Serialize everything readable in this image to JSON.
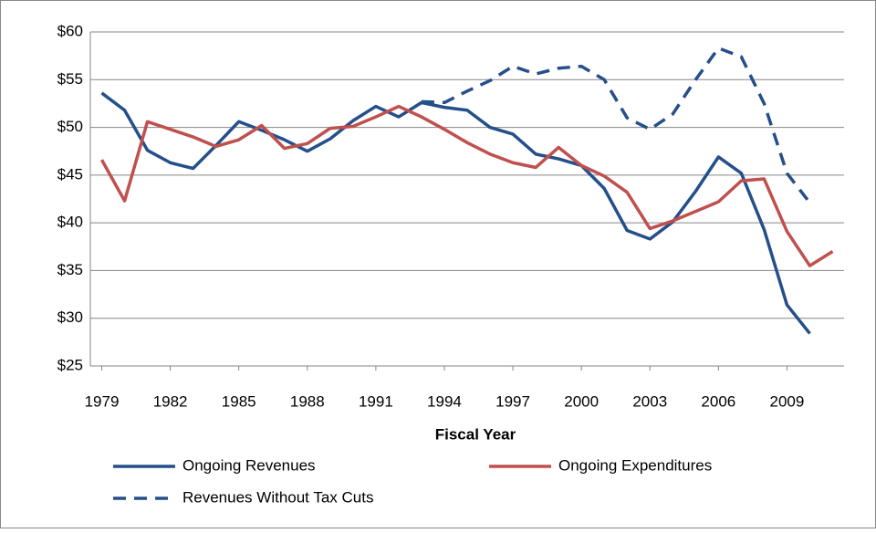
{
  "chart_data": {
    "type": "line",
    "x_label": "Fiscal Year",
    "x": [
      1979,
      1980,
      1981,
      1982,
      1983,
      1984,
      1985,
      1986,
      1987,
      1988,
      1989,
      1990,
      1991,
      1992,
      1993,
      1994,
      1995,
      1996,
      1997,
      1998,
      1999,
      2000,
      2001,
      2002,
      2003,
      2004,
      2005,
      2006,
      2007,
      2008,
      2009,
      2010,
      2011
    ],
    "series": [
      {
        "name": "Ongoing Revenues",
        "color": "#254f8a",
        "dash": false,
        "values": [
          53.6,
          51.8,
          47.6,
          46.3,
          45.7,
          48.1,
          50.6,
          49.7,
          48.7,
          47.5,
          48.8,
          50.7,
          52.2,
          51.1,
          52.6,
          52.1,
          51.8,
          50.0,
          49.3,
          47.2,
          46.7,
          46.0,
          43.6,
          39.2,
          38.3,
          40.1,
          43.3,
          46.9,
          45.2,
          39.3,
          31.4,
          28.4,
          null
        ]
      },
      {
        "name": "Ongoing Expenditures",
        "color": "#c0504d",
        "dash": false,
        "values": [
          46.6,
          42.3,
          50.6,
          49.8,
          49.0,
          48.0,
          48.7,
          50.2,
          47.8,
          48.3,
          49.9,
          50.1,
          51.1,
          52.2,
          51.1,
          49.8,
          48.4,
          47.2,
          46.3,
          45.8,
          47.9,
          46.0,
          44.9,
          43.2,
          39.4,
          40.2,
          41.2,
          42.2,
          44.4,
          44.6,
          39.1,
          35.5,
          37.0
        ]
      },
      {
        "name": "Revenues Without Tax Cuts",
        "color": "#254f8a",
        "dash": true,
        "values": [
          null,
          null,
          null,
          null,
          null,
          null,
          null,
          null,
          null,
          null,
          null,
          null,
          null,
          null,
          52.7,
          52.6,
          53.8,
          54.9,
          56.4,
          55.6,
          56.2,
          56.4,
          55.0,
          51.0,
          49.8,
          51.4,
          55.0,
          58.3,
          57.4,
          52.5,
          45.2,
          42.1,
          null
        ]
      }
    ],
    "xlim": [
      1978.5,
      2011.5
    ],
    "xticks": [
      1979,
      1982,
      1985,
      1988,
      1991,
      1994,
      1997,
      2000,
      2003,
      2006,
      2009
    ],
    "ylim": [
      25,
      60
    ],
    "yticks": [
      {
        "value": 25,
        "label": "$25"
      },
      {
        "value": 30,
        "label": "$30"
      },
      {
        "value": 35,
        "label": "$35"
      },
      {
        "value": 40,
        "label": "$40"
      },
      {
        "value": 45,
        "label": "$45"
      },
      {
        "value": 50,
        "label": "$50"
      },
      {
        "value": 55,
        "label": "$55"
      },
      {
        "value": 60,
        "label": "$60"
      }
    ],
    "grid": true,
    "legend": "bottom"
  }
}
